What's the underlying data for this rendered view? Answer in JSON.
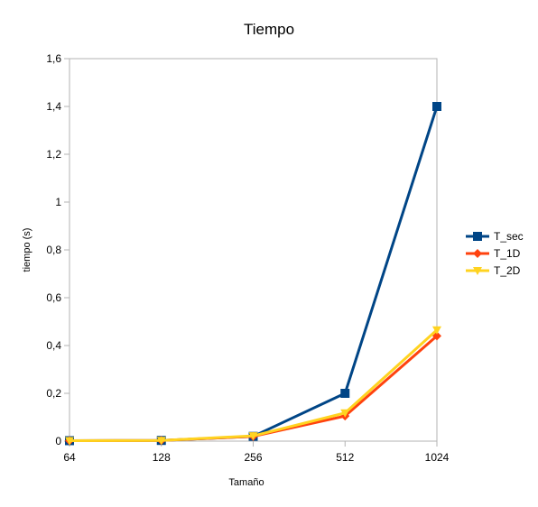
{
  "chart_data": {
    "type": "line",
    "title": "Tiempo",
    "xlabel": "Tamaño",
    "ylabel": "tiempo (s)",
    "categories": [
      "64",
      "128",
      "256",
      "512",
      "1024"
    ],
    "ylim": [
      0,
      1.6
    ],
    "yticks": [
      "0",
      "0,2",
      "0,4",
      "0,6",
      "0,8",
      "1",
      "1,2",
      "1,4",
      "1,6"
    ],
    "grid": false,
    "legend_position": "right",
    "series": [
      {
        "name": "T_sec",
        "values": [
          0.002,
          0.003,
          0.02,
          0.2,
          1.4
        ],
        "color": "#004586",
        "marker": "square"
      },
      {
        "name": "T_1D",
        "values": [
          0.002,
          0.003,
          0.02,
          0.105,
          0.44
        ],
        "color": "#ff420e",
        "marker": "diamond"
      },
      {
        "name": "T_2D",
        "values": [
          0.002,
          0.003,
          0.022,
          0.118,
          0.465
        ],
        "color": "#ffd320",
        "marker": "triangle-down"
      }
    ]
  }
}
